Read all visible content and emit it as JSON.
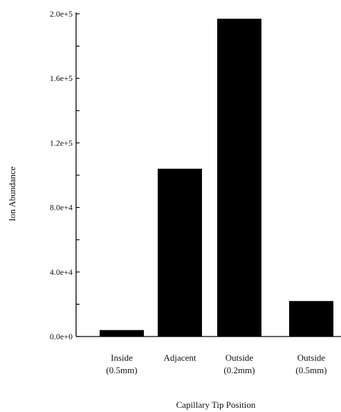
{
  "chart_data": {
    "type": "bar",
    "title": "",
    "xlabel": "Capillary Tip Position",
    "ylabel": "Ion Abundance",
    "categories": [
      [
        "Inside",
        "(0.5mm)"
      ],
      [
        "Adjacent"
      ],
      [
        "Outside",
        "(0.2mm)"
      ],
      [
        "Outside",
        "(0.5mm)"
      ]
    ],
    "values": [
      4000,
      104000,
      197000,
      22000
    ],
    "ylim": [
      0,
      200000
    ],
    "yticks": [
      {
        "value": 0,
        "label": "0.0e+0"
      },
      {
        "value": 40000,
        "label": "4.0e+4"
      },
      {
        "value": 80000,
        "label": "8.0e+4"
      },
      {
        "value": 120000,
        "label": "1.2e+5"
      },
      {
        "value": 160000,
        "label": "1.6e+5"
      },
      {
        "value": 200000,
        "label": "2.0e+5"
      }
    ],
    "yminor_step": 20000,
    "bar_color": "#000000",
    "grid": false,
    "legend": "none"
  }
}
